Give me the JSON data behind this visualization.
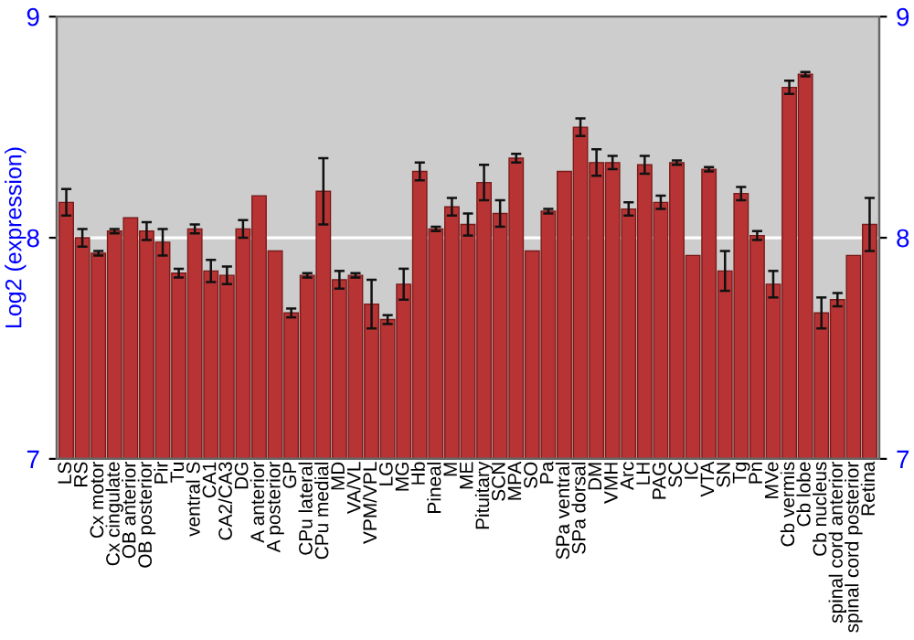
{
  "chart_data": {
    "type": "bar",
    "ylabel": "Log2 (expression)",
    "categories": [
      "LS",
      "RS",
      "Cx motor",
      "Cx cingulate",
      "OB anterior",
      "OB posterior",
      "Pir",
      "Tu",
      "ventral S",
      "CA1",
      "CA2/CA3",
      "DG",
      "A anterior",
      "A posterior",
      "GP",
      "CPu lateral",
      "CPu medial",
      "MD",
      "VA/VL",
      "VPM/VPL",
      "LG",
      "MG",
      "Hb",
      "Pineal",
      "M",
      "ME",
      "Pituitary",
      "SCN",
      "MPA",
      "SO",
      "Pa",
      "SPa ventral",
      "SPa dorsal",
      "DM",
      "VMH",
      "Arc",
      "LH",
      "PAG",
      "SC",
      "IC",
      "VTA",
      "SN",
      "Tg",
      "Pn",
      "MVe",
      "Cb vermis",
      "Cb lobe",
      "Cb nucleus",
      "spinal cord anterior",
      "spinal cord posterior",
      "Retina"
    ],
    "values": [
      8.16,
      8.0,
      7.93,
      8.03,
      8.09,
      8.03,
      7.98,
      7.84,
      8.04,
      7.85,
      7.83,
      8.04,
      8.19,
      7.94,
      7.66,
      7.83,
      8.21,
      7.81,
      7.83,
      7.7,
      7.63,
      7.79,
      8.3,
      8.04,
      8.14,
      8.06,
      8.25,
      8.11,
      8.36,
      7.94,
      8.12,
      8.3,
      8.5,
      8.34,
      8.34,
      8.13,
      8.33,
      8.16,
      8.34,
      7.92,
      8.31,
      7.85,
      8.2,
      8.01,
      7.79,
      8.68,
      8.74,
      7.66,
      7.72,
      7.92,
      8.06
    ],
    "errors": [
      0.06,
      0.04,
      0.01,
      0.01,
      null,
      0.04,
      0.06,
      0.02,
      0.02,
      0.05,
      0.04,
      0.04,
      null,
      null,
      0.02,
      0.01,
      0.15,
      0.04,
      0.01,
      0.11,
      0.02,
      0.07,
      0.04,
      0.01,
      0.04,
      0.05,
      0.08,
      0.06,
      0.02,
      null,
      0.01,
      null,
      0.04,
      0.06,
      0.03,
      0.03,
      0.04,
      0.03,
      0.01,
      null,
      0.01,
      0.09,
      0.03,
      0.02,
      0.06,
      0.03,
      0.01,
      0.07,
      0.03,
      null,
      0.12
    ],
    "color": "#b83434",
    "ylim": [
      7,
      9
    ],
    "yticks": [
      7,
      8,
      9
    ],
    "y2lim": [
      7,
      9
    ],
    "y2ticks": [
      7,
      8,
      9
    ],
    "grid": "y"
  }
}
